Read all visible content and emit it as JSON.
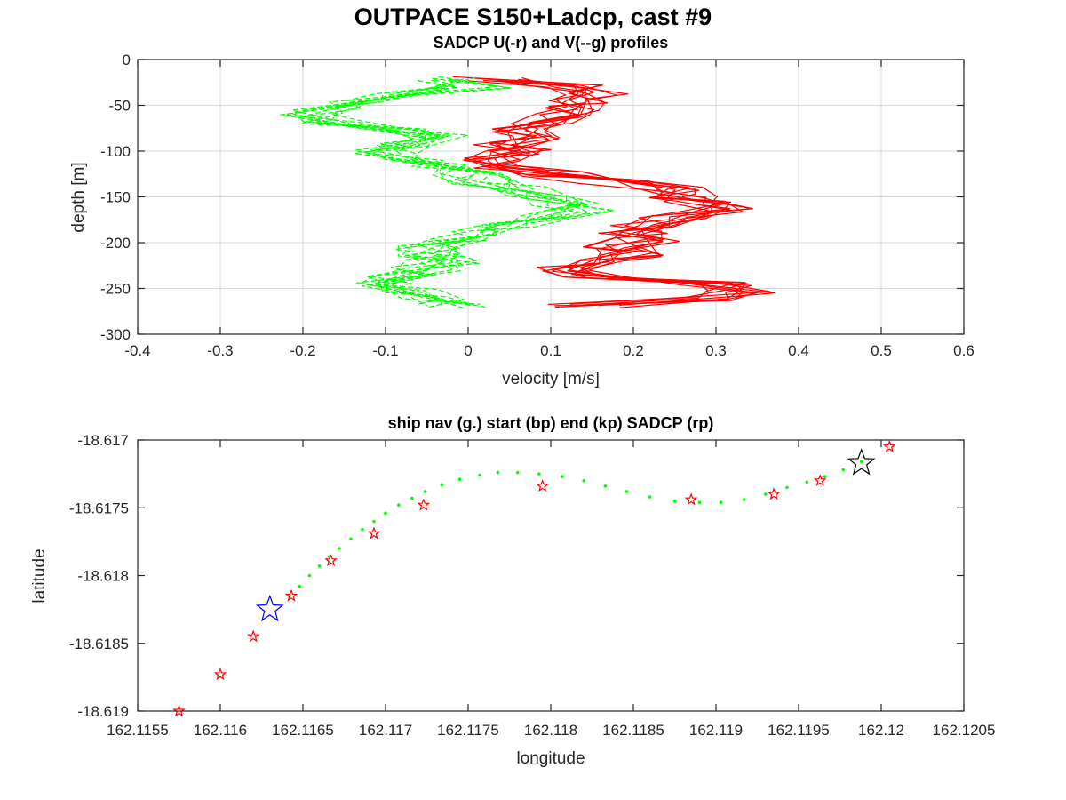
{
  "figure": {
    "title": "OUTPACE S150+Ladcp, cast #9"
  },
  "chart_data": [
    {
      "type": "line",
      "title": "SADCP U(-r) and V(--g) profiles",
      "xlabel": "velocity [m/s]",
      "ylabel": "depth [m]",
      "xlim": [
        -0.4,
        0.6
      ],
      "ylim": [
        -300,
        0
      ],
      "xticks": [
        -0.4,
        -0.3,
        -0.2,
        -0.1,
        0,
        0.1,
        0.2,
        0.3,
        0.4,
        0.5,
        0.6
      ],
      "yticks": [
        0,
        -50,
        -100,
        -150,
        -200,
        -250,
        -300
      ],
      "xtick_labels": [
        "-0.4",
        "-0.3",
        "-0.2",
        "-0.1",
        "0",
        "0.1",
        "0.2",
        "0.3",
        "0.4",
        "0.5",
        "0.6"
      ],
      "ytick_labels": [
        "0",
        "-50",
        "-100",
        "-150",
        "-200",
        "-250",
        "-300"
      ],
      "grid": true,
      "profile_count": 10,
      "depth": [
        -21,
        -29,
        -37,
        -45,
        -53,
        -61,
        -69,
        -77,
        -85,
        -93,
        -101,
        -109,
        -117,
        -125,
        -133,
        -141,
        -149,
        -157,
        -165,
        -173,
        -181,
        -189,
        -197,
        -205,
        -213,
        -221,
        -229,
        -237,
        -245,
        -253,
        -261,
        -269
      ],
      "series": [
        {
          "color": "#ff0000",
          "dash": "solid",
          "mean_values": [
            0.02,
            0.12,
            0.16,
            0.13,
            0.12,
            0.11,
            0.09,
            0.06,
            0.07,
            0.04,
            0.06,
            0.02,
            0.05,
            0.1,
            0.18,
            0.24,
            0.26,
            0.28,
            0.3,
            0.25,
            0.21,
            0.2,
            0.22,
            0.18,
            0.2,
            0.15,
            0.12,
            0.15,
            0.3,
            0.33,
            0.28,
            0.14
          ]
        },
        {
          "color": "#00ff00",
          "dash": "dashed",
          "mean_values": [
            -0.02,
            0.01,
            -0.07,
            -0.13,
            -0.17,
            -0.19,
            -0.16,
            -0.08,
            -0.04,
            -0.07,
            -0.1,
            -0.07,
            -0.03,
            0.0,
            0.02,
            0.05,
            0.09,
            0.12,
            0.14,
            0.1,
            0.05,
            0.01,
            -0.02,
            -0.05,
            -0.04,
            -0.03,
            -0.05,
            -0.08,
            -0.1,
            -0.08,
            -0.05,
            -0.02
          ]
        }
      ]
    },
    {
      "type": "scatter",
      "title": "ship nav (g.) start (bp) end (kp) SADCP (rp)",
      "xlabel": "longitude",
      "ylabel": "latitude",
      "xlim": [
        162.1155,
        162.1205
      ],
      "ylim": [
        -18.619,
        -18.617
      ],
      "xticks": [
        162.1155,
        162.116,
        162.1165,
        162.117,
        162.1175,
        162.118,
        162.1185,
        162.119,
        162.1195,
        162.12,
        162.1205
      ],
      "yticks": [
        -18.617,
        -18.6175,
        -18.618,
        -18.6185,
        -18.619
      ],
      "xtick_labels": [
        "162.1155",
        "162.116",
        "162.1165",
        "162.117",
        "162.1175",
        "162.118",
        "162.1185",
        "162.119",
        "162.1195",
        "162.12",
        "162.1205"
      ],
      "ytick_labels": [
        "-18.617",
        "-18.6175",
        "-18.618",
        "-18.6185",
        "-18.619"
      ],
      "grid": false,
      "ship_nav": {
        "color": "#00ff00",
        "points": [
          [
            162.11642,
            -18.61815
          ],
          [
            162.11648,
            -18.61808
          ],
          [
            162.11654,
            -18.618
          ],
          [
            162.1166,
            -18.61793
          ],
          [
            162.11666,
            -18.61786
          ],
          [
            162.11672,
            -18.6178
          ],
          [
            162.11679,
            -18.61773
          ],
          [
            162.11686,
            -18.61766
          ],
          [
            162.11693,
            -18.6176
          ],
          [
            162.117,
            -18.61754
          ],
          [
            162.11708,
            -18.61748
          ],
          [
            162.11716,
            -18.61743
          ],
          [
            162.11724,
            -18.61738
          ],
          [
            162.11734,
            -18.61733
          ],
          [
            162.11745,
            -18.61729
          ],
          [
            162.11757,
            -18.61726
          ],
          [
            162.11768,
            -18.61724
          ],
          [
            162.1178,
            -18.61724
          ],
          [
            162.11793,
            -18.61725
          ],
          [
            162.11807,
            -18.61727
          ],
          [
            162.1182,
            -18.6173
          ],
          [
            162.11833,
            -18.61734
          ],
          [
            162.11846,
            -18.61738
          ],
          [
            162.1186,
            -18.61742
          ],
          [
            162.11875,
            -18.61745
          ],
          [
            162.1189,
            -18.61746
          ],
          [
            162.11903,
            -18.61746
          ],
          [
            162.11917,
            -18.61744
          ],
          [
            162.1193,
            -18.6174
          ],
          [
            162.11943,
            -18.61735
          ],
          [
            162.11955,
            -18.61731
          ],
          [
            162.11966,
            -18.61727
          ],
          [
            162.11977,
            -18.61722
          ],
          [
            162.11988,
            -18.61716
          ]
        ]
      },
      "start": {
        "color": "#0000ff",
        "point": [
          162.1163,
          -18.61825
        ]
      },
      "end": {
        "color": "#000000",
        "point": [
          162.11988,
          -18.61717
        ]
      },
      "sadcp": {
        "color": "#ff0000",
        "points": [
          [
            162.11575,
            -18.619
          ],
          [
            162.116,
            -18.61873
          ],
          [
            162.1162,
            -18.61845
          ],
          [
            162.11643,
            -18.61815
          ],
          [
            162.11667,
            -18.61789
          ],
          [
            162.11693,
            -18.61769
          ],
          [
            162.11723,
            -18.61748
          ],
          [
            162.11795,
            -18.61734
          ],
          [
            162.11885,
            -18.61744
          ],
          [
            162.11935,
            -18.6174
          ],
          [
            162.11963,
            -18.6173
          ],
          [
            162.12005,
            -18.61705
          ]
        ]
      }
    }
  ]
}
